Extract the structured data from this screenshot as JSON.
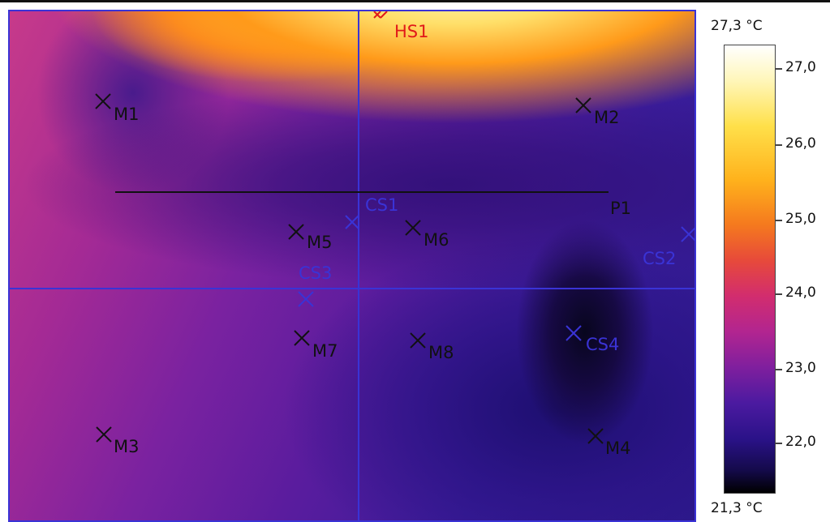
{
  "scale": {
    "max_label": "27,3 °C",
    "min_label": "21,3 °C",
    "ticks": [
      "27,0",
      "26,0",
      "25,0",
      "24,0",
      "23,0",
      "22,0"
    ]
  },
  "markers": {
    "M1": "M1",
    "M2": "M2",
    "M3": "M3",
    "M4": "M4",
    "M5": "M5",
    "M6": "M6",
    "M7": "M7",
    "M8": "M8",
    "HS1": "HS1",
    "CS1": "CS1",
    "CS2": "CS2",
    "CS3": "CS3",
    "CS4": "CS4",
    "P1": "P1"
  },
  "colors": {
    "measurement": "#111111",
    "cold_spot": "#3a33d6",
    "hot_spot": "#e11919"
  }
}
